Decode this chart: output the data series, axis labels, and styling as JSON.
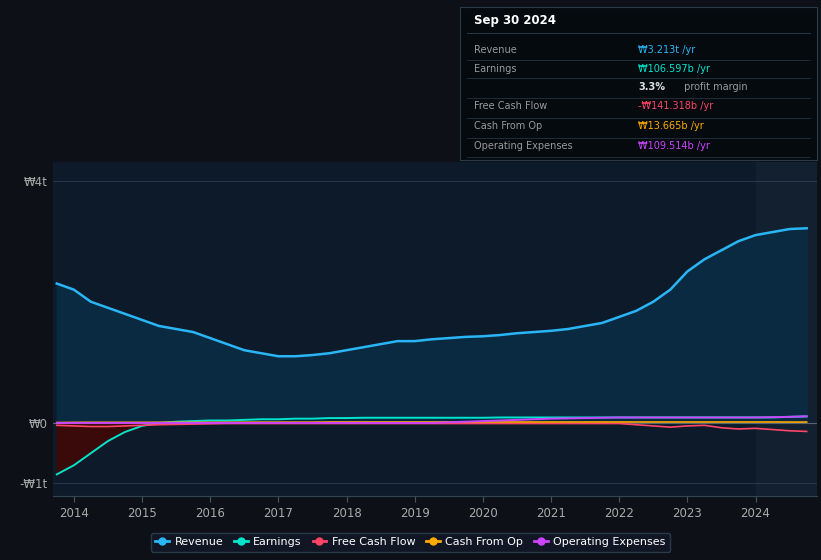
{
  "background_color": "#0d1117",
  "plot_bg_color": "#0d1a2a",
  "info_bg_color": "#050505",
  "x_years": [
    2013.75,
    2014.0,
    2014.25,
    2014.5,
    2014.75,
    2015.0,
    2015.25,
    2015.5,
    2015.75,
    2016.0,
    2016.25,
    2016.5,
    2016.75,
    2017.0,
    2017.25,
    2017.5,
    2017.75,
    2018.0,
    2018.25,
    2018.5,
    2018.75,
    2019.0,
    2019.25,
    2019.5,
    2019.75,
    2020.0,
    2020.25,
    2020.5,
    2020.75,
    2021.0,
    2021.25,
    2021.5,
    2021.75,
    2022.0,
    2022.25,
    2022.5,
    2022.75,
    2023.0,
    2023.25,
    2023.5,
    2023.75,
    2024.0,
    2024.25,
    2024.5,
    2024.75
  ],
  "revenue": [
    2.3,
    2.2,
    2.0,
    1.9,
    1.8,
    1.7,
    1.6,
    1.55,
    1.5,
    1.4,
    1.3,
    1.2,
    1.15,
    1.1,
    1.1,
    1.12,
    1.15,
    1.2,
    1.25,
    1.3,
    1.35,
    1.35,
    1.38,
    1.4,
    1.42,
    1.43,
    1.45,
    1.48,
    1.5,
    1.52,
    1.55,
    1.6,
    1.65,
    1.75,
    1.85,
    2.0,
    2.2,
    2.5,
    2.7,
    2.85,
    3.0,
    3.1,
    3.15,
    3.2,
    3.213
  ],
  "earnings": [
    -0.85,
    -0.7,
    -0.5,
    -0.3,
    -0.15,
    -0.05,
    0.0,
    0.02,
    0.03,
    0.04,
    0.04,
    0.05,
    0.06,
    0.06,
    0.07,
    0.07,
    0.08,
    0.08,
    0.085,
    0.085,
    0.085,
    0.085,
    0.085,
    0.085,
    0.085,
    0.085,
    0.09,
    0.09,
    0.09,
    0.09,
    0.09,
    0.09,
    0.09,
    0.09,
    0.09,
    0.09,
    0.09,
    0.09,
    0.09,
    0.09,
    0.09,
    0.09,
    0.09,
    0.1,
    0.1065
  ],
  "free_cash_flow": [
    -0.04,
    -0.05,
    -0.06,
    -0.06,
    -0.05,
    -0.04,
    -0.03,
    -0.025,
    -0.02,
    -0.015,
    -0.01,
    -0.01,
    -0.01,
    -0.01,
    -0.01,
    -0.01,
    -0.01,
    -0.01,
    -0.01,
    -0.01,
    -0.01,
    -0.01,
    -0.01,
    -0.01,
    -0.01,
    -0.01,
    -0.01,
    -0.01,
    -0.01,
    -0.01,
    -0.01,
    -0.01,
    -0.01,
    -0.01,
    -0.03,
    -0.05,
    -0.07,
    -0.05,
    -0.04,
    -0.08,
    -0.1,
    -0.09,
    -0.11,
    -0.13,
    -0.1413
  ],
  "cash_from_op": [
    0.005,
    0.008,
    0.01,
    0.01,
    0.01,
    0.01,
    0.01,
    0.01,
    0.01,
    0.01,
    0.01,
    0.012,
    0.012,
    0.012,
    0.012,
    0.012,
    0.015,
    0.015,
    0.015,
    0.015,
    0.015,
    0.015,
    0.015,
    0.015,
    0.015,
    0.015,
    0.015,
    0.015,
    0.015,
    0.015,
    0.015,
    0.015,
    0.015,
    0.015,
    0.015,
    0.015,
    0.015,
    0.015,
    0.015,
    0.015,
    0.015,
    0.015,
    0.015,
    0.014,
    0.013665
  ],
  "operating_expenses": [
    0.0,
    0.0,
    0.0,
    0.0,
    0.0,
    0.0,
    0.0,
    0.0,
    0.0,
    0.0,
    0.0,
    0.0,
    0.0,
    0.0,
    0.0,
    0.0,
    0.0,
    0.0,
    0.0,
    0.0,
    0.0,
    0.0,
    0.0,
    0.01,
    0.02,
    0.03,
    0.04,
    0.05,
    0.06,
    0.07,
    0.075,
    0.08,
    0.085,
    0.09,
    0.09,
    0.09,
    0.09,
    0.09,
    0.09,
    0.09,
    0.09,
    0.09,
    0.095,
    0.1,
    0.1095
  ],
  "ylim": [
    -1.2,
    4.3
  ],
  "yticks": [
    -1.0,
    0.0,
    4.0
  ],
  "ytick_labels": [
    "-₩1t",
    "₩0",
    "₩4t"
  ],
  "xticks": [
    2014,
    2015,
    2016,
    2017,
    2018,
    2019,
    2020,
    2021,
    2022,
    2023,
    2024
  ],
  "revenue_color": "#29b6f6",
  "revenue_fill": "#0a2a42",
  "earnings_fill": "#3d0a0a",
  "earnings_color": "#00e5cc",
  "fcf_color": "#ff4466",
  "cop_color": "#ffaa00",
  "opex_color": "#cc44ff",
  "shade_start": 2024.0,
  "shaded_right_color": "#132030",
  "legend_items": [
    "Revenue",
    "Earnings",
    "Free Cash Flow",
    "Cash From Op",
    "Operating Expenses"
  ],
  "legend_colors": [
    "#29b6f6",
    "#00e5cc",
    "#ff4466",
    "#ffaa00",
    "#cc44ff"
  ],
  "info_date": "Sep 30 2024",
  "info_rows": [
    {
      "label": "Revenue",
      "value": "₩3.213t /yr",
      "vcolor": "#29b6f6"
    },
    {
      "label": "Earnings",
      "value": "₩106.597b /yr",
      "vcolor": "#00e5cc"
    },
    {
      "label": "",
      "value": "3.3% profit margin",
      "vcolor": "#ffffff",
      "bold_prefix": "3.3%"
    },
    {
      "label": "Free Cash Flow",
      "value": "-₩141.318b /yr",
      "vcolor": "#ff4466"
    },
    {
      "label": "Cash From Op",
      "value": "₩13.665b /yr",
      "vcolor": "#ffaa00"
    },
    {
      "label": "Operating Expenses",
      "value": "₩109.514b /yr",
      "vcolor": "#cc44ff"
    }
  ]
}
